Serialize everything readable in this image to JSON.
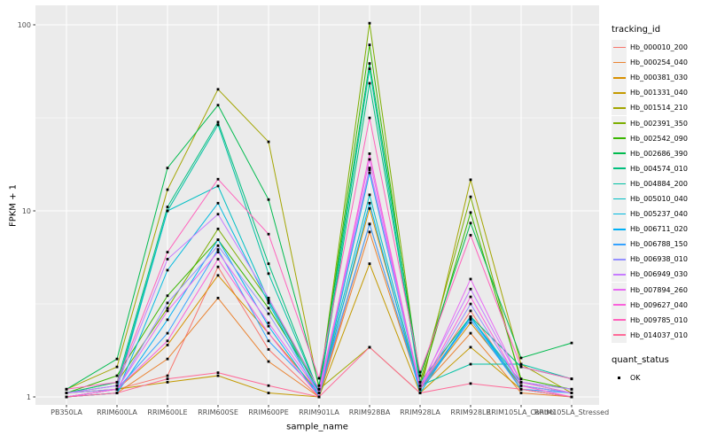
{
  "figure": {
    "background": "#FFFFFF",
    "panel_background": "#EBEBEB",
    "grid_color": "#FFFFFF",
    "tick_color": "#333333",
    "tick_label_color": "#4D4D4D",
    "point_color": "#000000"
  },
  "chart_data": {
    "type": "line",
    "title": "",
    "xlabel": "sample_name",
    "ylabel": "FPKM + 1",
    "y_scale": "log10",
    "ylim": [
      0.9,
      127
    ],
    "y_ticks": [
      1,
      10,
      100
    ],
    "y_minor_ticks": [
      3.162,
      31.62
    ],
    "grid": true,
    "legend_title": "tracking_id",
    "legend_position": "right",
    "categories": [
      "PB350LA",
      "RRIM600LA",
      "RRIM600LE",
      "RRIM600SE",
      "RRIM600PE",
      "RRIM901LA",
      "RRIM928BA",
      "RRIM928LA",
      "RRIM928LE",
      "RRIM105LA_Control",
      "RRIM105LA_Stressed"
    ],
    "series": [
      {
        "name": "Hb_000010_200",
        "color": "#F8766D",
        "values": [
          1.05,
          1.1,
          1.3,
          5.0,
          1.8,
          1.0,
          8.5,
          1.1,
          2.9,
          1.1,
          1.0
        ]
      },
      {
        "name": "Hb_000254_040",
        "color": "#EA8331",
        "values": [
          1.0,
          1.05,
          1.6,
          3.4,
          1.55,
          1.0,
          7.7,
          1.1,
          2.2,
          1.05,
          1.0
        ]
      },
      {
        "name": "Hb_000381_030",
        "color": "#D89000",
        "values": [
          1.0,
          1.1,
          1.9,
          4.5,
          2.2,
          1.05,
          10.3,
          1.1,
          2.5,
          1.15,
          1.05
        ]
      },
      {
        "name": "Hb_001331_040",
        "color": "#C49A00",
        "values": [
          1.05,
          1.1,
          1.2,
          1.3,
          1.05,
          1.0,
          5.2,
          1.05,
          1.85,
          1.1,
          1.0
        ]
      },
      {
        "name": "Hb_001514_210",
        "color": "#A3A500",
        "values": [
          1.1,
          1.45,
          13.0,
          45.0,
          23.5,
          1.1,
          1.85,
          1.05,
          14.7,
          1.5,
          1.05
        ]
      },
      {
        "name": "Hb_002391_350",
        "color": "#7CAE00",
        "values": [
          1.05,
          1.2,
          3.0,
          8.0,
          3.3,
          1.1,
          102.0,
          1.2,
          11.9,
          1.2,
          1.05
        ]
      },
      {
        "name": "Hb_002542_090",
        "color": "#39B600",
        "values": [
          1.05,
          1.3,
          3.5,
          7.0,
          3.0,
          1.1,
          78.0,
          1.15,
          9.8,
          1.25,
          1.1
        ]
      },
      {
        "name": "Hb_002686_390",
        "color": "#00BB4E",
        "values": [
          1.1,
          1.6,
          17.0,
          37.0,
          11.5,
          1.15,
          62.0,
          1.3,
          8.6,
          1.62,
          1.95
        ]
      },
      {
        "name": "Hb_004574_010",
        "color": "#00BF7D",
        "values": [
          1.05,
          1.2,
          10.5,
          30.0,
          5.2,
          1.05,
          48.5,
          1.2,
          2.7,
          1.45,
          1.25
        ]
      },
      {
        "name": "Hb_004884_200",
        "color": "#00C1A3",
        "values": [
          1.05,
          1.15,
          10.0,
          29.0,
          4.6,
          1.05,
          58.0,
          1.15,
          1.5,
          1.5,
          1.25
        ]
      },
      {
        "name": "Hb_005010_040",
        "color": "#00BFC4",
        "values": [
          1.0,
          1.1,
          10.0,
          13.6,
          3.3,
          1.05,
          12.2,
          1.1,
          2.68,
          1.2,
          1.1
        ]
      },
      {
        "name": "Hb_005237_040",
        "color": "#00BAE0",
        "values": [
          1.0,
          1.05,
          4.8,
          11.0,
          3.2,
          1.0,
          16.0,
          1.1,
          2.68,
          1.15,
          1.05
        ]
      },
      {
        "name": "Hb_006711_020",
        "color": "#00B0F6",
        "values": [
          1.0,
          1.05,
          2.6,
          7.0,
          2.4,
          1.0,
          11.0,
          1.05,
          2.7,
          1.1,
          1.0
        ]
      },
      {
        "name": "Hb_006788_150",
        "color": "#35A2FF",
        "values": [
          1.0,
          1.1,
          2.2,
          6.2,
          2.0,
          1.05,
          8.5,
          1.1,
          2.6,
          1.1,
          1.05
        ]
      },
      {
        "name": "Hb_006938_010",
        "color": "#9590FF",
        "values": [
          1.05,
          1.1,
          3.2,
          6.5,
          2.8,
          1.05,
          16.6,
          1.1,
          3.16,
          1.15,
          1.05
        ]
      },
      {
        "name": "Hb_006949_030",
        "color": "#C77CFF",
        "values": [
          1.05,
          1.15,
          5.5,
          9.6,
          3.4,
          1.1,
          17.0,
          1.15,
          3.8,
          1.2,
          1.1
        ]
      },
      {
        "name": "Hb_007894_260",
        "color": "#E76BF3",
        "values": [
          1.0,
          1.1,
          2.9,
          6.0,
          2.5,
          1.05,
          18.9,
          1.1,
          4.3,
          1.2,
          1.05
        ]
      },
      {
        "name": "Hb_009627_040",
        "color": "#FA62DB",
        "values": [
          1.0,
          1.1,
          2.0,
          5.5,
          2.2,
          1.0,
          20.3,
          1.1,
          3.45,
          1.15,
          1.0
        ]
      },
      {
        "name": "Hb_009785_010",
        "color": "#FF62BC",
        "values": [
          1.1,
          1.2,
          6.0,
          14.8,
          7.5,
          1.26,
          31.6,
          1.36,
          7.4,
          1.45,
          1.25
        ]
      },
      {
        "name": "Hb_014037_010",
        "color": "#FF6A98",
        "values": [
          1.0,
          1.05,
          1.25,
          1.35,
          1.15,
          1.0,
          1.85,
          1.05,
          1.18,
          1.1,
          1.0
        ]
      }
    ],
    "quant_status": {
      "title": "quant_status",
      "entries": [
        "OK"
      ],
      "marker_color": "#000000"
    }
  }
}
